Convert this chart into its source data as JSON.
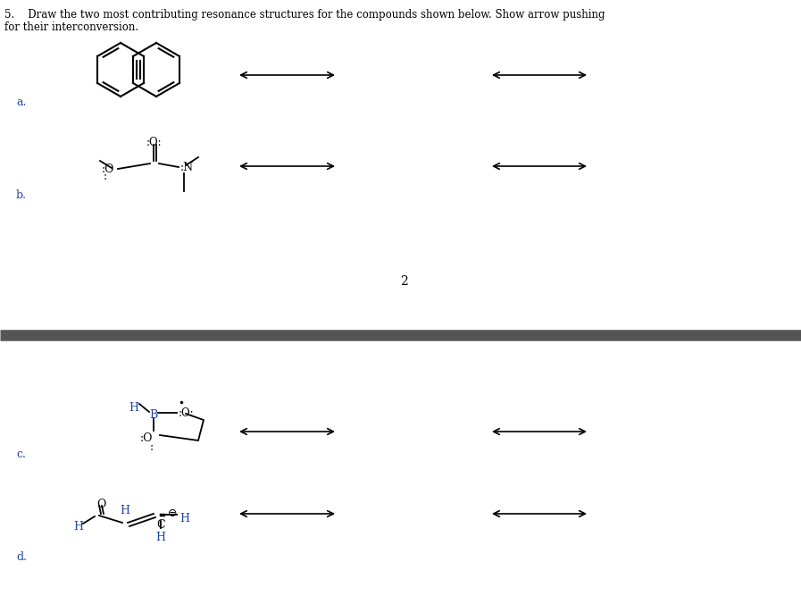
{
  "title_line1": "5.    Draw the two most contributing resonance structures for the compounds shown below. Show arrow pushing",
  "title_line2": "for their interconversion.",
  "bg_color": "#ffffff",
  "text_color": "#000000",
  "separator_color": "#555555",
  "label_a": "a.",
  "label_b": "b.",
  "label_c": "c.",
  "label_d": "d.",
  "number_2": "2",
  "arrow_color": "#000000",
  "blue_color": "#2244aa",
  "figsize": [
    8.97,
    6.76
  ],
  "dpi": 100
}
